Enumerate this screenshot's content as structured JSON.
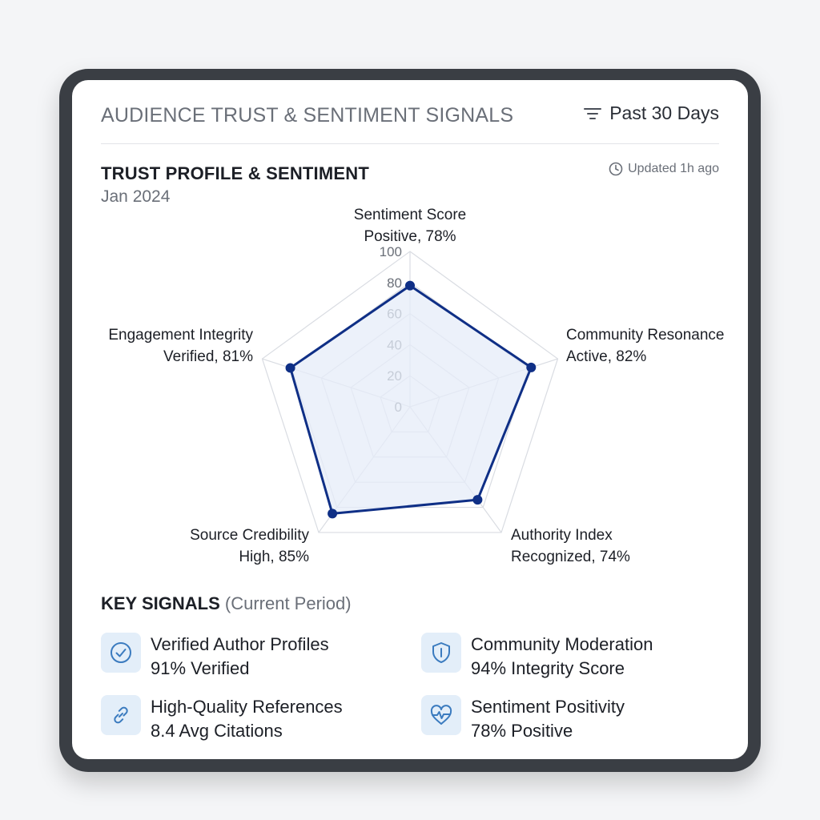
{
  "header": {
    "title": "AUDIENCE TRUST & SENTIMENT SIGNALS",
    "filter_label": "Past 30 Days",
    "filter_icon": "filter-icon"
  },
  "section": {
    "title": "TRUST PROFILE & SENTIMENT",
    "subtitle": "Jan 2024",
    "updated": "Updated 1h ago",
    "updated_icon": "clock-icon"
  },
  "chart_data": {
    "type": "radar",
    "range": [
      0,
      100
    ],
    "ticks": [
      "0",
      "20",
      "40",
      "60",
      "80",
      "100"
    ],
    "grid": true,
    "axes": [
      {
        "name": "Sentiment Score",
        "status": "Positive, 78%",
        "value": 78
      },
      {
        "name": "Community Resonance",
        "status": "Active, 82%",
        "value": 82
      },
      {
        "name": "Authority Index",
        "status": "Recognized, 74%",
        "value": 74
      },
      {
        "name": "Source Credibility",
        "status": "High, 85%",
        "value": 85
      },
      {
        "name": "Engagement Integrity",
        "status": "Verified, 81%",
        "value": 81
      }
    ],
    "colors": {
      "line": "#0f2f86",
      "fill": "#e6ecf8",
      "grid": "#d9dce2"
    }
  },
  "signals": {
    "title": "KEY SIGNALS",
    "period": "(Current Period)",
    "items": [
      {
        "name": "Verified Author Profiles",
        "value": "91% Verified",
        "icon": "check-circle-icon"
      },
      {
        "name": "Community Moderation",
        "value": "94% Integrity Score",
        "icon": "shield-icon"
      },
      {
        "name": "High-Quality References",
        "value": "8.4 Avg Citations",
        "icon": "link-icon"
      },
      {
        "name": "Sentiment Positivity",
        "value": "78% Positive",
        "icon": "heart-pulse-icon"
      }
    ],
    "icon_color": "#3b7bbf",
    "icon_bg": "#e3eef9"
  }
}
